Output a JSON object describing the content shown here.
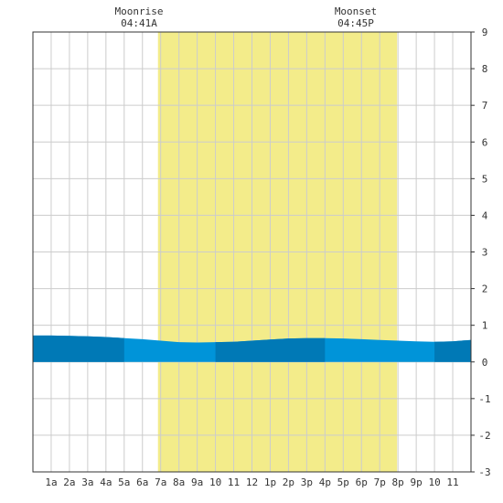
{
  "chart_data": {
    "type": "area",
    "moonrise": {
      "label": "Moonrise",
      "time": "04:41A"
    },
    "moonset": {
      "label": "Moonset",
      "time": "04:45P"
    },
    "daylight": {
      "start_hour": 6.85,
      "end_hour": 19.95,
      "color": "#f3ec8a"
    },
    "x_ticks": [
      "1a",
      "2a",
      "3a",
      "4a",
      "5a",
      "6a",
      "7a",
      "8a",
      "9a",
      "10",
      "11",
      "12",
      "1p",
      "2p",
      "3p",
      "4p",
      "5p",
      "6p",
      "7p",
      "8p",
      "9p",
      "10",
      "11"
    ],
    "xlim": [
      0,
      24
    ],
    "ylim": [
      -3,
      9
    ],
    "y_ticks": [
      "-3",
      "-2",
      "-1",
      "0",
      "1",
      "2",
      "3",
      "4",
      "5",
      "6",
      "7",
      "8",
      "9"
    ],
    "grid": true,
    "series": [
      {
        "x": [
          0,
          1,
          2,
          3,
          4,
          5,
          6,
          7,
          8,
          9,
          10,
          11,
          12,
          13,
          14,
          15,
          16,
          17,
          18,
          19,
          20,
          21,
          22,
          23,
          24
        ],
        "values": [
          0.72,
          0.72,
          0.71,
          0.7,
          0.68,
          0.65,
          0.62,
          0.58,
          0.54,
          0.53,
          0.54,
          0.55,
          0.58,
          0.61,
          0.64,
          0.65,
          0.65,
          0.64,
          0.62,
          0.6,
          0.58,
          0.56,
          0.55,
          0.56,
          0.6
        ]
      }
    ],
    "colors": {
      "fill": "#0094d9",
      "fill_dark": "#0079b6",
      "grid": "#cccccc",
      "axis": "#333333"
    },
    "dark_bands": [
      [
        0,
        5
      ],
      [
        10,
        16
      ],
      [
        22,
        24
      ]
    ]
  }
}
